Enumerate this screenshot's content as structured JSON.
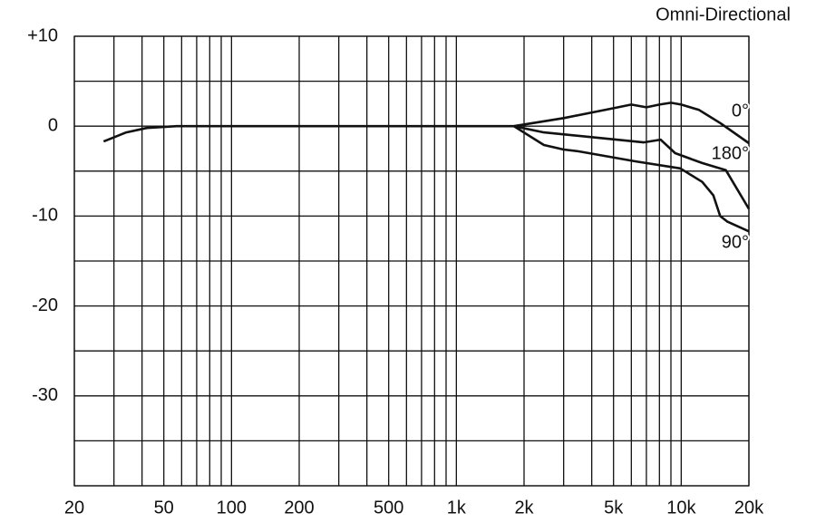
{
  "chart_data": {
    "type": "line",
    "title": "Omni-Directional",
    "log_x": true,
    "xlim": [
      20,
      20000
    ],
    "ylim": [
      -40,
      10
    ],
    "xticks": [
      20,
      50,
      100,
      200,
      500,
      {
        "value": 1000,
        "label": "1k"
      },
      {
        "value": 2000,
        "label": "2k"
      },
      {
        "value": 5000,
        "label": "5k"
      },
      {
        "value": 10000,
        "label": "10k"
      },
      {
        "value": 20000,
        "label": "20k"
      }
    ],
    "xminor": [
      30,
      40,
      60,
      70,
      80,
      90,
      300,
      400,
      600,
      700,
      800,
      900,
      3000,
      4000,
      6000,
      7000,
      8000,
      9000
    ],
    "yticks": [
      {
        "value": 10,
        "label": "+10"
      },
      0,
      -10,
      -20,
      -30
    ],
    "yminor": [
      5,
      -5,
      -15,
      -25,
      -35,
      -40
    ],
    "grid": true,
    "series": [
      {
        "name": "0°",
        "color": "#111111",
        "x": [
          27,
          34,
          42,
          57,
          100,
          1000,
          1800,
          3000,
          5000,
          6000,
          7000,
          8000,
          9000,
          10000,
          12000,
          15000,
          20000
        ],
        "values": [
          -1.7,
          -0.7,
          -0.2,
          0,
          0,
          0,
          0,
          0.9,
          2,
          2.4,
          2.1,
          2.4,
          2.6,
          2.4,
          1.8,
          0.3,
          -1.9
        ]
      },
      {
        "name": "180°",
        "color": "#111111",
        "x": [
          1800,
          2450,
          3900,
          6800,
          8100,
          9400,
          12400,
          15800,
          20000
        ],
        "values": [
          0,
          -0.7,
          -1.2,
          -1.8,
          -1.5,
          -3,
          -4.1,
          -4.9,
          -9.2
        ]
      },
      {
        "name": "90°",
        "color": "#111111",
        "x": [
          1800,
          2450,
          3000,
          3500,
          6200,
          9900,
          12400,
          13900,
          14900,
          16000,
          20000
        ],
        "values": [
          0,
          -2.1,
          -2.6,
          -2.8,
          -3.9,
          -4.7,
          -6.2,
          -7.7,
          -10,
          -10.6,
          -11.7
        ]
      }
    ]
  }
}
